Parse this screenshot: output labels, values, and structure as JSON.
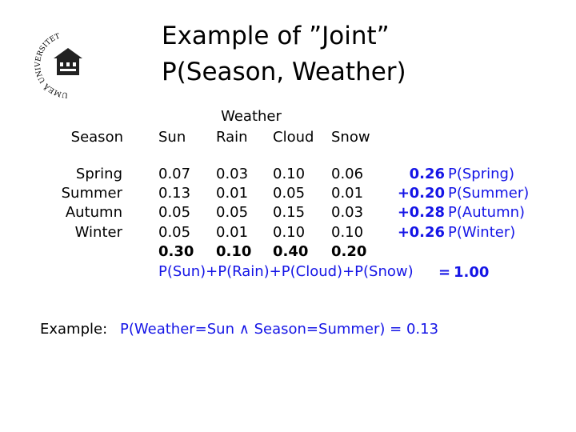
{
  "title": [
    "Example of ”Joint”",
    "P(Season, Weather)"
  ],
  "logo": "UMEÅ UNIVERSITET",
  "table": {
    "row_header": "Season",
    "column_group": "Weather",
    "columns": [
      "Sun",
      "Rain",
      "Cloud",
      "Snow"
    ],
    "rows": [
      {
        "label": "Spring",
        "values": [
          "0.07",
          "0.03",
          "0.10",
          "0.06"
        ],
        "marginal": {
          "value": "0.26",
          "label": "P(Spring)"
        }
      },
      {
        "label": "Summer",
        "values": [
          "0.13",
          "0.01",
          "0.05",
          "0.01"
        ],
        "marginal": {
          "sign": "+",
          "value": "0.20",
          "label": "P(Summer)"
        }
      },
      {
        "label": "Autumn",
        "values": [
          "0.05",
          "0.05",
          "0.15",
          "0.03"
        ],
        "marginal": {
          "sign": "+",
          "value": "0.28",
          "label": "P(Autumn)"
        }
      },
      {
        "label": "Winter",
        "values": [
          "0.05",
          "0.01",
          "0.10",
          "0.10"
        ],
        "marginal": {
          "sign": "+",
          "value": "0.26",
          "label": "P(Winter)"
        }
      }
    ],
    "column_sums": [
      "0.30",
      "0.10",
      "0.40",
      "0.20"
    ],
    "sum_formula": "P(Sun)+P(Rain)+P(Cloud)+P(Snow)",
    "total": {
      "sign": "=",
      "value": "1.00"
    }
  },
  "example": {
    "label": "Example:",
    "text": "P(Weather=Sun ∧ Season=Summer) = 0.13"
  }
}
